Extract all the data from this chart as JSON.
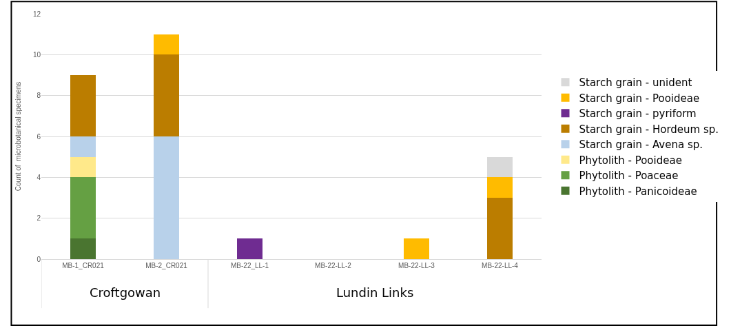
{
  "chart_data": {
    "type": "bar",
    "stacked": true,
    "ylabel": "Count of  microbotanical specimens",
    "categories": [
      "MB-1_CR021",
      "MB-2_CR021",
      "MB-22_LL-1",
      "MB-22-LL-2",
      "MB-22-LL-3",
      "MB-22-LL-4"
    ],
    "series": [
      {
        "name": "Phytolith - Panicoideae",
        "color": "#4a7530",
        "values": [
          1,
          0,
          0,
          0,
          0,
          0
        ]
      },
      {
        "name": "Phytolith - Poaceae",
        "color": "#65a043",
        "values": [
          3,
          0,
          0,
          0,
          0,
          0
        ]
      },
      {
        "name": "Phytolith - Pooideae",
        "color": "#ffe98a",
        "values": [
          1,
          0,
          0,
          0,
          0,
          0
        ]
      },
      {
        "name": "Starch grain - Avena sp.",
        "color": "#b8d1ea",
        "values": [
          1,
          6,
          0,
          0,
          0,
          0
        ]
      },
      {
        "name": "Starch grain - Hordeum sp.",
        "color": "#bb7d00",
        "values": [
          3,
          4,
          0,
          0,
          0,
          3
        ]
      },
      {
        "name": "Starch grain - pyriform",
        "color": "#6f2c91",
        "values": [
          0,
          0,
          1,
          0,
          0,
          0
        ]
      },
      {
        "name": "Starch grain - Pooideae",
        "color": "#ffbb00",
        "values": [
          0,
          1,
          0,
          0,
          1,
          1
        ]
      },
      {
        "name": "Starch grain - unident",
        "color": "#d9d9d9",
        "values": [
          0,
          0,
          0,
          0,
          0,
          1
        ]
      }
    ],
    "ylim": [
      0,
      12
    ],
    "yticks": [
      0,
      2,
      4,
      6,
      8,
      10,
      12
    ],
    "grid": "y",
    "legend": "right",
    "annotations": [
      "Croftgowan",
      "Lundin Links"
    ]
  }
}
